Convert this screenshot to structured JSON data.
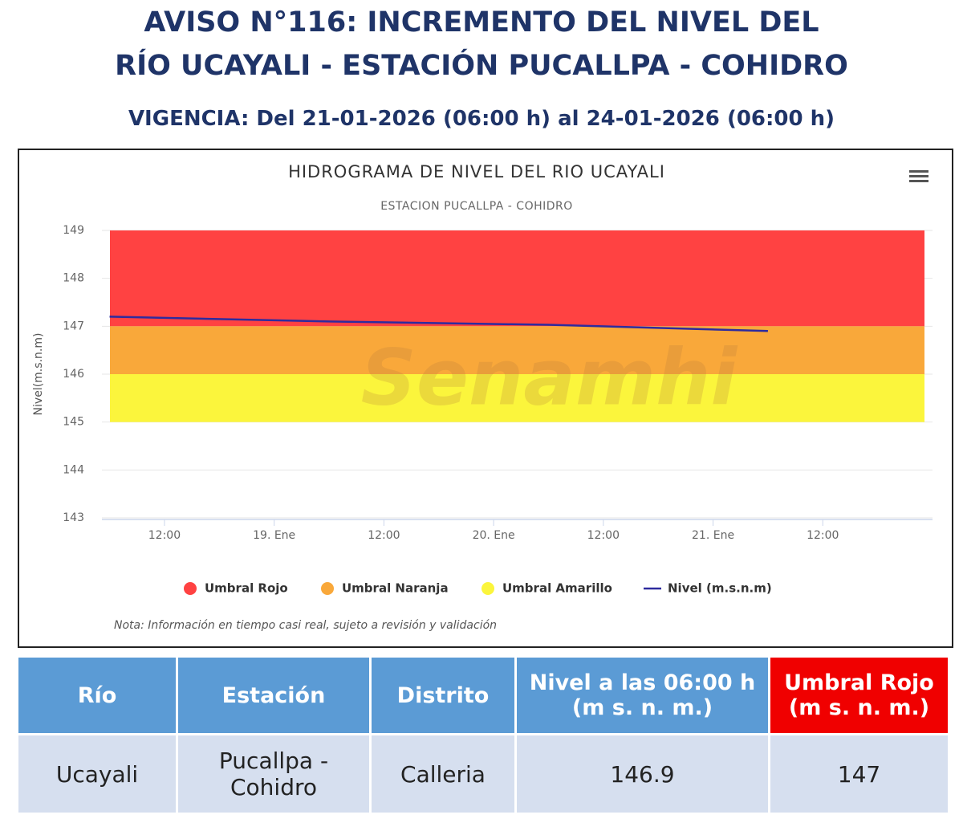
{
  "header": {
    "title_line1": "AVISO N°116: INCREMENTO DEL NIVEL DEL",
    "title_line2": "RÍO UCAYALI - ESTACIÓN PUCALLPA - COHIDRO",
    "validity": "VIGENCIA: Del 21-01-2026 (06:00 h) al 24-01-2026 (06:00 h)"
  },
  "chart_data": {
    "type": "line",
    "title": "HIDROGRAMA DE NIVEL DEL RIO UCAYALI",
    "subtitle": "ESTACION PUCALLPA - COHIDRO",
    "y_label": "Nivel(m.s.n.m)",
    "watermark": "Senamhi",
    "note": "Nota: Información en tiempo casi real, sujeto a revisión y validación",
    "x": [
      18.25,
      19.25,
      20.25,
      21.25
    ],
    "series": [
      {
        "name": "Nivel (m.s.n.m)",
        "color": "#2e2b9e",
        "values": [
          147.2,
          147.1,
          147.03,
          146.9
        ]
      }
    ],
    "bands": [
      {
        "name": "Umbral Rojo",
        "color": "#ff4242",
        "from": 147,
        "to": 149
      },
      {
        "name": "Umbral Naranja",
        "color": "#f9a83a",
        "from": 146,
        "to": 147
      },
      {
        "name": "Umbral Amarillo",
        "color": "#fbf53c",
        "from": 145,
        "to": 146
      }
    ],
    "xlim": [
      18.215,
      22.0
    ],
    "xticks": [
      {
        "value": 18.5,
        "label": "12:00"
      },
      {
        "value": 19,
        "label": "19. Ene"
      },
      {
        "value": 19.5,
        "label": "12:00"
      },
      {
        "value": 20,
        "label": "20. Ene"
      },
      {
        "value": 20.5,
        "label": "12:00"
      },
      {
        "value": 21,
        "label": "21. Ene"
      },
      {
        "value": 21.5,
        "label": "12:00"
      }
    ],
    "ylim": [
      143,
      149
    ],
    "yticks": [
      143,
      144,
      145,
      146,
      147,
      148,
      149
    ],
    "grid": true
  },
  "table": {
    "headers": [
      "Río",
      "Estación",
      "Distrito",
      "Nivel a las 06:00 h (m s. n. m.)",
      "Umbral Rojo (m s. n. m.)"
    ],
    "rows": [
      [
        "Ucayali",
        "Pucallpa - Cohidro",
        "Calleria",
        146.9,
        147
      ]
    ]
  }
}
